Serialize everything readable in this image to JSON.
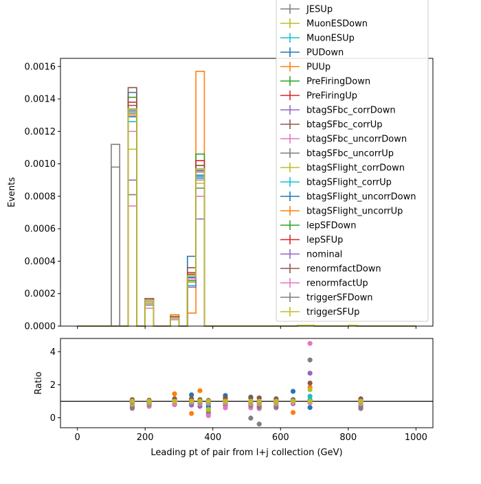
{
  "chart_data": [
    {
      "type": "histogram",
      "xlabel": "",
      "ylabel": "Events",
      "xlim": [
        -50,
        1050
      ],
      "ylim": [
        0,
        0.00165
      ],
      "yticks": [
        0,
        0.0002,
        0.0004,
        0.0006,
        0.0008,
        0.001,
        0.0012,
        0.0014,
        0.0016
      ],
      "ytick_labels": [
        "0.0000",
        "0.0002",
        "0.0004",
        "0.0006",
        "0.0008",
        "0.0010",
        "0.0012",
        "0.0014",
        "0.0016"
      ],
      "xticks": [
        0,
        200,
        400,
        600,
        800,
        1000
      ],
      "bin_edges": [
        0,
        100,
        125,
        150,
        175,
        200,
        225,
        275,
        300,
        325,
        350,
        375,
        650,
        700,
        800,
        825,
        850,
        1000
      ],
      "series": [
        {
          "name": "JESUp",
          "color": "#7f7f7f",
          "values": [
            0,
            0.00112,
            0,
            0.00133,
            0,
            0.00016,
            0,
            5e-05,
            0,
            0.00027,
            0.00096,
            0,
            5e-06,
            0,
            5e-06,
            0,
            0
          ]
        },
        {
          "name": "MuonESDown",
          "color": "#bcbd22",
          "values": [
            0,
            0,
            0,
            0.00132,
            0,
            0.00016,
            0,
            5e-05,
            0,
            0.00027,
            0.00096,
            0,
            5e-06,
            0,
            5e-06,
            0,
            0
          ]
        },
        {
          "name": "MuonESUp",
          "color": "#17becf",
          "values": [
            0,
            0,
            0,
            0.00132,
            0,
            0.00014,
            0,
            5e-05,
            0,
            0.00025,
            0.00096,
            0,
            5e-06,
            0,
            5e-06,
            0,
            0
          ]
        },
        {
          "name": "PUDown",
          "color": "#1f77b4",
          "values": [
            0,
            0,
            0,
            0.00144,
            0,
            0.00015,
            0,
            4e-05,
            0,
            0.00043,
            0.00092,
            0,
            5e-06,
            0,
            5e-06,
            0,
            0
          ]
        },
        {
          "name": "PUUp",
          "color": "#ff7f0e",
          "values": [
            0,
            0,
            0,
            0.0013,
            0,
            0.00017,
            0,
            7e-05,
            0,
            8e-05,
            0.00157,
            0,
            5e-06,
            0,
            5e-06,
            0,
            0
          ]
        },
        {
          "name": "PreFiringDown",
          "color": "#2ca02c",
          "values": [
            0,
            0,
            0,
            0.00141,
            0,
            0.00016,
            0,
            5e-05,
            0,
            0.00028,
            0.00106,
            0,
            5e-06,
            0,
            5e-06,
            0,
            0
          ]
        },
        {
          "name": "PreFiringUp",
          "color": "#d62728",
          "values": [
            0,
            0,
            0,
            0.00138,
            0,
            0.00016,
            0,
            5e-05,
            0,
            0.00033,
            0.00102,
            0,
            5e-06,
            0,
            5e-06,
            0,
            0
          ]
        },
        {
          "name": "btagSFbc_corrDown",
          "color": "#9467bd",
          "values": [
            0,
            0,
            0,
            0.0009,
            0,
            0.00013,
            0,
            4e-05,
            0,
            0.00024,
            0.00066,
            0,
            5e-06,
            0,
            5e-06,
            0,
            0
          ]
        },
        {
          "name": "btagSFbc_corrUp",
          "color": "#8c564b",
          "values": [
            0,
            0,
            0,
            0.00147,
            0,
            0.00017,
            0,
            6e-05,
            0,
            0.00036,
            0.00099,
            0,
            5e-06,
            0,
            5e-06,
            0,
            0
          ]
        },
        {
          "name": "btagSFbc_uncorrDown",
          "color": "#e377c2",
          "values": [
            0,
            0,
            0,
            0.00074,
            0,
            0.00011,
            0,
            4e-05,
            0,
            0.0003,
            0.0008,
            0,
            5e-06,
            0,
            5e-06,
            0,
            0
          ]
        },
        {
          "name": "btagSFbc_uncorrUp",
          "color": "#7f7f7f",
          "values": [
            0,
            0.00098,
            0,
            0.00081,
            0,
            0.00013,
            0,
            4e-05,
            0,
            0.00031,
            0.00085,
            0,
            5e-06,
            0,
            5e-06,
            0,
            0
          ]
        },
        {
          "name": "btagSFlight_corrDown",
          "color": "#bcbd22",
          "values": [
            0,
            0,
            0,
            0.00109,
            0,
            0.00014,
            0,
            5e-05,
            0,
            0.00032,
            0.00088,
            0,
            5e-06,
            0,
            5e-06,
            0,
            0
          ]
        },
        {
          "name": "btagSFlight_corrUp",
          "color": "#17becf",
          "values": [
            0,
            0,
            0,
            0.00126,
            0,
            0.00015,
            0,
            5e-05,
            0,
            0.0003,
            0.00091,
            0,
            5e-06,
            0,
            5e-06,
            0,
            0
          ]
        },
        {
          "name": "btagSFlight_uncorrDown",
          "color": "#1f77b4",
          "values": [
            0,
            0,
            0,
            0.00129,
            0,
            0.00015,
            0,
            5e-05,
            0,
            0.0003,
            0.00093,
            0,
            5e-06,
            0,
            5e-06,
            0,
            0
          ]
        },
        {
          "name": "btagSFlight_uncorrUp",
          "color": "#ff7f0e",
          "values": [
            0,
            0,
            0,
            0.00133,
            0,
            0.00016,
            0,
            5e-05,
            0,
            0.00031,
            0.00095,
            0,
            5e-06,
            0,
            5e-06,
            0,
            0
          ]
        },
        {
          "name": "lepSFDown",
          "color": "#2ca02c",
          "values": [
            0,
            0,
            0,
            0.00133,
            0,
            0.00016,
            0,
            5e-05,
            0,
            0.00031,
            0.00096,
            0,
            5e-06,
            0,
            5e-06,
            0,
            0
          ]
        },
        {
          "name": "lepSFUp",
          "color": "#d62728",
          "values": [
            0,
            0,
            0,
            0.00134,
            0,
            0.00016,
            0,
            5e-05,
            0,
            0.00031,
            0.00097,
            0,
            5e-06,
            0,
            5e-06,
            0,
            0
          ]
        },
        {
          "name": "nominal",
          "color": "#9467bd",
          "values": [
            0,
            0,
            0,
            0.00133,
            0,
            0.00016,
            0,
            5e-05,
            0,
            0.00031,
            0.00096,
            0,
            5e-06,
            0,
            5e-06,
            0,
            0
          ]
        },
        {
          "name": "renormfactDown",
          "color": "#8c564b",
          "values": [
            0,
            0,
            0,
            0.00136,
            0,
            0.00016,
            0,
            5e-05,
            0,
            0.00032,
            0.00099,
            0,
            5e-06,
            0,
            5e-06,
            0,
            0
          ]
        },
        {
          "name": "renormfactUp",
          "color": "#e377c2",
          "values": [
            0,
            0,
            0,
            0.0012,
            0,
            0.00015,
            0,
            4e-05,
            0,
            0.00029,
            0.0009,
            0,
            5e-06,
            0,
            5e-06,
            0,
            0
          ]
        },
        {
          "name": "triggerSFDown",
          "color": "#7f7f7f",
          "values": [
            0,
            0,
            0,
            0.00131,
            0,
            0.00016,
            0,
            5e-05,
            0,
            0.00031,
            0.00095,
            0,
            5e-06,
            0,
            5e-06,
            0,
            0
          ]
        },
        {
          "name": "triggerSFUp",
          "color": "#bcbd22",
          "values": [
            0,
            0,
            0,
            0.00134,
            0,
            0.00016,
            0,
            5e-05,
            0,
            0.00031,
            0.00097,
            0,
            5e-06,
            0,
            5e-06,
            0,
            0
          ]
        }
      ],
      "legend": "upper right"
    },
    {
      "type": "scatter",
      "xlabel": "Leading pt of pair from l+j collection (GeV)",
      "ylabel": "Ratio",
      "xlim": [
        -50,
        1050
      ],
      "ylim": [
        -0.6,
        4.8
      ],
      "yticks": [
        0,
        2,
        4
      ],
      "xticks": [
        0,
        200,
        400,
        600,
        800,
        1000
      ],
      "reference_line": 1,
      "x": [
        162,
        212,
        287,
        337,
        362,
        387,
        437,
        512,
        537,
        587,
        637,
        687,
        837
      ],
      "series": [
        {
          "name": "JESUp",
          "color": "#7f7f7f",
          "values": [
            1.0,
            1.0,
            1.0,
            0.87,
            1.0,
            1.0,
            1.0,
            -0.02,
            -0.38,
            1.0,
            1.0,
            3.5,
            1.0
          ]
        },
        {
          "name": "MuonESDown",
          "color": "#bcbd22",
          "values": [
            0.99,
            1.0,
            1.0,
            0.87,
            1.0,
            1.0,
            1.0,
            1.0,
            1.0,
            1.0,
            1.0,
            1.05,
            1.0
          ]
        },
        {
          "name": "MuonESUp",
          "color": "#17becf",
          "values": [
            0.99,
            0.88,
            1.0,
            0.81,
            1.0,
            0.72,
            1.0,
            1.0,
            1.0,
            1.0,
            1.0,
            1.3,
            1.0
          ]
        },
        {
          "name": "PUDown",
          "color": "#1f77b4",
          "values": [
            1.08,
            0.94,
            0.8,
            1.39,
            0.96,
            0.65,
            1.35,
            1.25,
            1.2,
            1.1,
            1.6,
            0.62,
            0.72
          ]
        },
        {
          "name": "PUUp",
          "color": "#ff7f0e",
          "values": [
            0.98,
            1.06,
            1.45,
            0.26,
            1.64,
            0.5,
            0.85,
            0.85,
            0.82,
            0.9,
            0.32,
            1.85,
            1.1
          ]
        },
        {
          "name": "PreFiringDown",
          "color": "#2ca02c",
          "values": [
            1.06,
            1.0,
            1.0,
            0.9,
            1.1,
            1.0,
            1.05,
            1.0,
            1.0,
            1.0,
            1.0,
            1.0,
            1.0
          ]
        },
        {
          "name": "PreFiringUp",
          "color": "#d62728",
          "values": [
            1.04,
            1.0,
            1.0,
            1.06,
            1.06,
            1.0,
            1.05,
            1.0,
            1.0,
            1.0,
            1.0,
            1.0,
            1.0
          ]
        },
        {
          "name": "btagSFbc_corrDown",
          "color": "#9467bd",
          "values": [
            0.68,
            0.81,
            0.8,
            0.77,
            0.69,
            0.25,
            0.75,
            0.78,
            0.7,
            0.7,
            0.85,
            2.7,
            0.75
          ]
        },
        {
          "name": "btagSFbc_corrUp",
          "color": "#8c564b",
          "values": [
            1.1,
            1.06,
            1.15,
            1.16,
            1.03,
            1.05,
            1.2,
            1.2,
            1.2,
            1.15,
            1.1,
            2.1,
            1.15
          ]
        },
        {
          "name": "btagSFbc_uncorrDown",
          "color": "#e377c2",
          "values": [
            0.56,
            0.69,
            0.8,
            0.97,
            0.83,
            0.13,
            0.6,
            0.6,
            0.55,
            0.6,
            0.9,
            4.5,
            0.55
          ]
        },
        {
          "name": "btagSFbc_uncorrUp",
          "color": "#7f7f7f",
          "values": [
            0.61,
            0.81,
            0.8,
            1.0,
            0.89,
            0.4,
            0.85,
            0.75,
            0.65,
            0.65,
            1.05,
            1.05,
            0.6
          ]
        },
        {
          "name": "btagSFlight_corrDown",
          "color": "#bcbd22",
          "values": [
            0.82,
            0.88,
            1.0,
            1.03,
            0.92,
            0.5,
            0.9,
            0.85,
            0.85,
            0.85,
            1.0,
            1.7,
            0.85
          ]
        },
        {
          "name": "btagSFlight_corrUp",
          "color": "#17becf",
          "values": [
            0.95,
            0.94,
            1.0,
            0.97,
            0.95,
            0.85,
            1.0,
            0.95,
            0.95,
            0.95,
            1.0,
            1.1,
            0.95
          ]
        },
        {
          "name": "btagSFlight_uncorrDown",
          "color": "#1f77b4",
          "values": [
            0.97,
            0.94,
            1.0,
            0.97,
            0.97,
            0.9,
            1.0,
            0.97,
            0.97,
            0.97,
            1.0,
            1.0,
            0.97
          ]
        },
        {
          "name": "btagSFlight_uncorrUp",
          "color": "#ff7f0e",
          "values": [
            1.0,
            1.0,
            1.0,
            1.0,
            0.99,
            1.0,
            1.0,
            1.0,
            1.0,
            1.0,
            1.0,
            1.0,
            1.0
          ]
        },
        {
          "name": "lepSFDown",
          "color": "#2ca02c",
          "values": [
            1.0,
            1.0,
            1.0,
            1.0,
            1.0,
            1.0,
            1.0,
            1.0,
            1.0,
            1.0,
            1.0,
            1.0,
            1.0
          ]
        },
        {
          "name": "lepSFUp",
          "color": "#d62728",
          "values": [
            1.01,
            1.0,
            1.0,
            1.0,
            1.01,
            1.0,
            1.0,
            1.0,
            1.0,
            1.0,
            1.0,
            1.0,
            1.0
          ]
        },
        {
          "name": "nominal",
          "color": "#9467bd",
          "values": [
            1.0,
            1.0,
            1.0,
            1.0,
            1.0,
            1.0,
            1.0,
            1.0,
            1.0,
            1.0,
            1.0,
            1.0,
            1.0
          ]
        },
        {
          "name": "renormfactDown",
          "color": "#8c564b",
          "values": [
            1.02,
            1.0,
            1.0,
            1.03,
            1.03,
            1.0,
            1.0,
            1.0,
            1.0,
            1.0,
            1.0,
            1.0,
            1.0
          ]
        },
        {
          "name": "renormfactUp",
          "color": "#e377c2",
          "values": [
            0.9,
            0.94,
            0.8,
            0.94,
            0.94,
            0.9,
            0.9,
            0.9,
            0.9,
            0.9,
            0.9,
            0.9,
            0.9
          ]
        },
        {
          "name": "triggerSFDown",
          "color": "#7f7f7f",
          "values": [
            0.98,
            1.0,
            1.0,
            1.0,
            0.99,
            1.0,
            1.0,
            1.0,
            1.0,
            1.0,
            1.0,
            1.0,
            1.0
          ]
        },
        {
          "name": "triggerSFUp",
          "color": "#bcbd22",
          "values": [
            1.01,
            1.0,
            1.0,
            1.0,
            1.01,
            1.0,
            1.0,
            1.0,
            1.0,
            1.0,
            1.0,
            1.0,
            1.0
          ]
        }
      ]
    }
  ]
}
